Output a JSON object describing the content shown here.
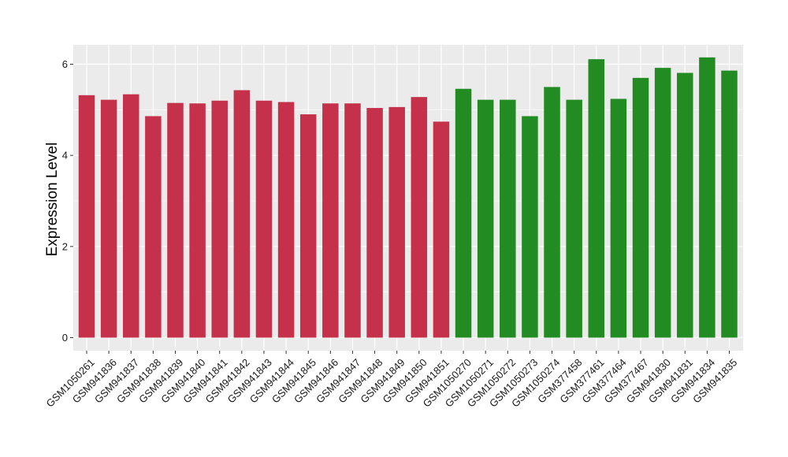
{
  "chart_data": {
    "type": "bar",
    "title": "",
    "xlabel": "",
    "ylabel": "Expression Level",
    "ylim": [
      0,
      6.4
    ],
    "yticks": [
      0,
      2,
      4,
      6
    ],
    "yticklabels": [
      "0",
      "2",
      "4",
      "6"
    ],
    "grid": true,
    "legend": "none",
    "colors": {
      "group1": "#C5314A",
      "group2": "#228B22",
      "panel": "#EBEBEB",
      "grid": "#FFFFFF"
    },
    "categories": [
      "GSM1050261",
      "GSM941836",
      "GSM941837",
      "GSM941838",
      "GSM941839",
      "GSM941840",
      "GSM941841",
      "GSM941842",
      "GSM941843",
      "GSM941844",
      "GSM941845",
      "GSM941846",
      "GSM941847",
      "GSM941848",
      "GSM941849",
      "GSM941850",
      "GSM941851",
      "GSM1050270",
      "GSM1050271",
      "GSM1050272",
      "GSM1050273",
      "GSM1050274",
      "GSM377458",
      "GSM377461",
      "GSM377464",
      "GSM377467",
      "GSM941830",
      "GSM941831",
      "GSM941834",
      "GSM941835"
    ],
    "values": [
      5.32,
      5.22,
      5.34,
      4.86,
      5.15,
      5.14,
      5.2,
      5.43,
      5.2,
      5.17,
      4.9,
      5.14,
      5.14,
      5.04,
      5.06,
      5.28,
      4.74,
      5.46,
      5.22,
      5.22,
      4.86,
      5.5,
      5.22,
      6.11,
      5.24,
      5.7,
      5.92,
      5.81,
      6.15,
      5.86
    ],
    "groups": [
      1,
      1,
      1,
      1,
      1,
      1,
      1,
      1,
      1,
      1,
      1,
      1,
      1,
      1,
      1,
      1,
      1,
      2,
      2,
      2,
      2,
      2,
      2,
      2,
      2,
      2,
      2,
      2,
      2,
      2
    ]
  }
}
